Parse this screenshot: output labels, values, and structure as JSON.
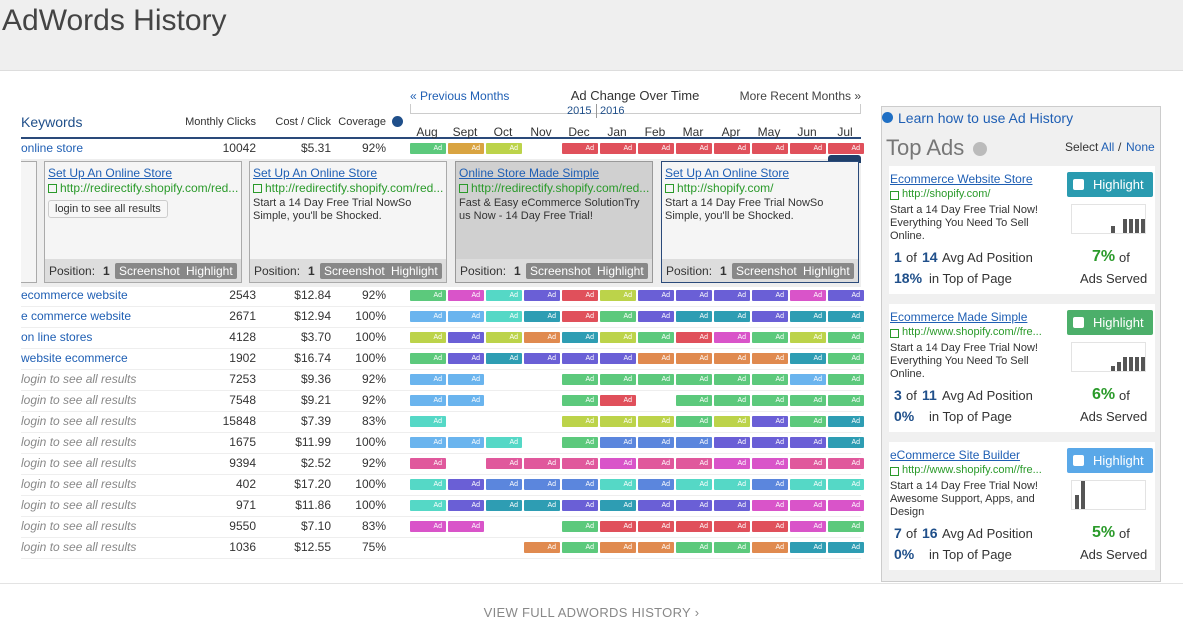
{
  "header": {
    "title": "AdWords History"
  },
  "timeline": {
    "previous": "« Previous Months",
    "title": "Ad Change Over Time",
    "next": "More Recent Months »",
    "years": [
      "2015",
      "2016"
    ],
    "months": [
      "Aug",
      "Sept",
      "Oct",
      "Nov",
      "Dec",
      "Jan",
      "Feb",
      "Mar",
      "Apr",
      "May",
      "Jun",
      "Jul"
    ]
  },
  "table": {
    "columns": [
      "Keywords",
      "Monthly Clicks",
      "Cost / Click",
      "Coverage"
    ],
    "ad_label": "Ad",
    "rows": [
      {
        "keyword": "online store",
        "locked": false,
        "clicks": 10042,
        "cost": "$5.31",
        "coverage": "92%",
        "ads": [
          "#5cc97c",
          "#d9a441",
          "#bcd34a",
          null,
          "#e0505b",
          "#e0505b",
          "#e0505b",
          "#e0505b",
          "#e0505b",
          "#e0505b",
          "#e0505b",
          "#e0505b"
        ]
      },
      {
        "keyword": "ecommerce website",
        "locked": false,
        "clicks": 2543,
        "cost": "$12.84",
        "coverage": "92%",
        "ads": [
          "#5cc97c",
          "#d954c9",
          "#55d8c6",
          "#6a5fd6",
          "#e0505b",
          "#bcd34a",
          "#6a5fd6",
          "#6a5fd6",
          "#6a5fd6",
          "#6a5fd6",
          "#d954c9",
          "#6a5fd6"
        ]
      },
      {
        "keyword": "e commerce website",
        "locked": false,
        "clicks": 2671,
        "cost": "$12.94",
        "coverage": "100%",
        "ads": [
          "#6ab4ee",
          "#6ab4ee",
          "#55d8c6",
          "#2e9db3",
          "#e0505b",
          "#5cc97c",
          "#6a5fd6",
          "#2e9db3",
          "#2e9db3",
          "#6a5fd6",
          "#2e9db3",
          "#2e9db3"
        ]
      },
      {
        "keyword": "on line stores",
        "locked": false,
        "clicks": 4128,
        "cost": "$3.70",
        "coverage": "100%",
        "ads": [
          "#bcd34a",
          "#6a5fd6",
          "#bcd34a",
          "#e08a4f",
          "#2e9db3",
          "#bcd34a",
          "#5cc97c",
          "#e0505b",
          "#d954c9",
          "#5cc97c",
          "#bcd34a",
          "#5cc97c"
        ]
      },
      {
        "keyword": "website ecommerce",
        "locked": false,
        "clicks": 1902,
        "cost": "$16.74",
        "coverage": "100%",
        "ads": [
          "#5cc97c",
          "#6a5fd6",
          "#2e9db3",
          "#6a5fd6",
          "#6a5fd6",
          "#6a5fd6",
          "#e08a4f",
          "#e08a4f",
          "#e08a4f",
          "#e08a4f",
          "#2e9db3",
          "#5cc97c"
        ]
      },
      {
        "keyword": "login to see all results",
        "locked": true,
        "clicks": 7253,
        "cost": "$9.36",
        "coverage": "92%",
        "ads": [
          "#6ab4ee",
          "#6ab4ee",
          null,
          null,
          "#5cc97c",
          "#5cc97c",
          "#5cc97c",
          "#5cc97c",
          "#5cc97c",
          "#5cc97c",
          "#6ab4ee",
          "#5cc97c"
        ]
      },
      {
        "keyword": "login to see all results",
        "locked": true,
        "clicks": 7548,
        "cost": "$9.21",
        "coverage": "92%",
        "ads": [
          "#6ab4ee",
          "#6ab4ee",
          null,
          null,
          "#5cc97c",
          "#e0505b",
          null,
          "#5cc97c",
          "#5cc97c",
          "#5cc97c",
          "#5cc97c",
          "#5cc97c"
        ]
      },
      {
        "keyword": "login to see all results",
        "locked": true,
        "clicks": 15848,
        "cost": "$7.39",
        "coverage": "83%",
        "ads": [
          "#55d8c6",
          null,
          null,
          null,
          "#bcd34a",
          "#bcd34a",
          "#bcd34a",
          "#5cc97c",
          "#bcd34a",
          "#6a5fd6",
          "#5cc97c",
          "#2e9db3"
        ]
      },
      {
        "keyword": "login to see all results",
        "locked": true,
        "clicks": 1675,
        "cost": "$11.99",
        "coverage": "100%",
        "ads": [
          "#6ab4ee",
          "#6ab4ee",
          "#55d8c6",
          null,
          "#5cc97c",
          "#5b86dd",
          "#5b86dd",
          "#5b86dd",
          "#6a5fd6",
          "#6a5fd6",
          "#6a5fd6",
          "#2e9db3"
        ]
      },
      {
        "keyword": "login to see all results",
        "locked": true,
        "clicks": 9394,
        "cost": "$2.52",
        "coverage": "92%",
        "ads": [
          "#e0589c",
          null,
          "#e0589c",
          "#e0589c",
          "#e0589c",
          "#d954c9",
          "#e0589c",
          "#e0589c",
          "#d954c9",
          "#d954c9",
          "#e0589c",
          "#e0589c"
        ]
      },
      {
        "keyword": "login to see all results",
        "locked": true,
        "clicks": 402,
        "cost": "$17.20",
        "coverage": "100%",
        "ads": [
          "#55d8c6",
          "#6a5fd6",
          "#5b86dd",
          "#5b86dd",
          "#5b86dd",
          "#55d8c6",
          "#5b86dd",
          "#55d8c6",
          "#55d8c6",
          "#5b86dd",
          "#55d8c6",
          "#55d8c6"
        ]
      },
      {
        "keyword": "login to see all results",
        "locked": true,
        "clicks": 971,
        "cost": "$11.86",
        "coverage": "100%",
        "ads": [
          "#55d8c6",
          "#6a5fd6",
          "#2e9db3",
          "#2e9db3",
          "#6a5fd6",
          "#2e9db3",
          "#6a5fd6",
          "#6a5fd6",
          "#6a5fd6",
          "#d954c9",
          "#d954c9",
          "#d954c9"
        ]
      },
      {
        "keyword": "login to see all results",
        "locked": true,
        "clicks": 9550,
        "cost": "$7.10",
        "coverage": "83%",
        "ads": [
          "#d954c9",
          "#d954c9",
          null,
          null,
          "#5cc97c",
          "#e0505b",
          "#e0505b",
          "#e0505b",
          "#e0505b",
          "#e0505b",
          "#d954c9",
          "#5cc97c"
        ]
      },
      {
        "keyword": "login to see all results",
        "locked": true,
        "clicks": 1036,
        "cost": "$12.55",
        "coverage": "75%",
        "ads": [
          null,
          null,
          null,
          "#e08a4f",
          "#5cc97c",
          "#e08a4f",
          "#e08a4f",
          "#5cc97c",
          "#5cc97c",
          "#e08a4f",
          "#2e9db3",
          "#2e9db3"
        ]
      }
    ]
  },
  "ad_cards": {
    "position_label": "Position:",
    "screenshot": "Screenshot",
    "highlight": "Highlight",
    "login": "login to see all results",
    "cards": [
      {
        "title": "Set Up An Online Store",
        "url": "http://redirectify.shopify.com/red...",
        "description": null,
        "position": 1,
        "selected": false
      },
      {
        "title": "Set Up An Online Store",
        "url": "http://redirectify.shopify.com/red...",
        "description": "Start a 14 Day Free Trial NowSo Simple, you'll be Shocked.",
        "position": 1,
        "selected": false
      },
      {
        "title": "Online Store Made Simple",
        "url": "http://redirectify.shopify.com/red...",
        "description": "Fast & Easy eCommerce SolutionTry us Now - 14 Day Free Trial!",
        "position": 1,
        "selected": true
      },
      {
        "title": "Set Up An Online Store",
        "url": "http://shopify.com/",
        "description": "Start a 14 Day Free Trial NowSo Simple, you'll be Shocked.",
        "position": 1,
        "selected": false
      }
    ]
  },
  "top_ads": {
    "help": "Learn how to use Ad History",
    "title": "Top Ads",
    "select": "Select",
    "all": "All",
    "separator": "/",
    "none": "None",
    "highlight": "Highlight",
    "of": "of",
    "avg_position": "Avg Ad Position",
    "top_of_page": "in Top of Page",
    "ads_served": "Ads Served",
    "ads": [
      {
        "title": "Ecommerce Website Store",
        "url": "http://shopify.com/",
        "description": "Start a 14 Day Free Trial Now! Everything You Need To Sell Online.",
        "position": 1,
        "total": 14,
        "top_pct": "18%",
        "served": "7%",
        "color": "#2a9bb0",
        "bars": [
          0,
          0,
          0,
          0,
          0,
          0,
          3,
          0,
          6,
          6,
          6,
          6
        ]
      },
      {
        "title": "Ecommerce Made Simple",
        "url": "http://www.shopify.com//fre...",
        "description": "Start a 14 Day Free Trial Now! Everything You Need To Sell Online.",
        "position": 3,
        "total": 11,
        "top_pct": "0%",
        "served": "6%",
        "color": "#4caf6a",
        "bars": [
          0,
          0,
          0,
          0,
          0,
          0,
          2,
          4,
          6,
          6,
          6,
          6
        ]
      },
      {
        "title": "eCommerce Site Builder",
        "url": "http://www.shopify.com//fre...",
        "description": "Start a 14 Day Free Trial Now! Awesome Support, Apps, and Design",
        "position": 7,
        "total": 16,
        "top_pct": "0%",
        "served": "5%",
        "color": "#5aa8e8",
        "bars": [
          6,
          12,
          0,
          0,
          0,
          0,
          0,
          0,
          0,
          0,
          0,
          0
        ]
      }
    ]
  },
  "footer": {
    "link": "VIEW FULL ADWORDS HISTORY ›"
  }
}
